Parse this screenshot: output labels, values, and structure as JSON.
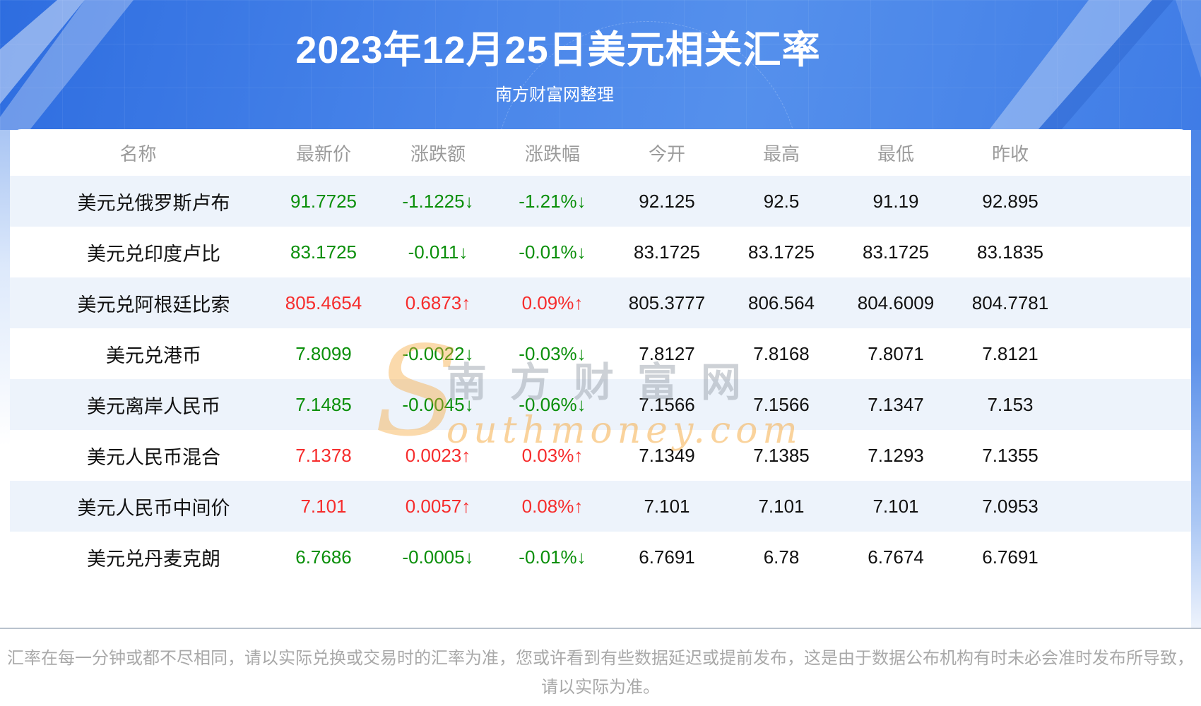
{
  "header": {
    "title": "2023年12月25日美元相关汇率",
    "subtitle": "南方财富网整理"
  },
  "table": {
    "columns": [
      "名称",
      "最新价",
      "涨跌额",
      "涨跌幅",
      "今开",
      "最高",
      "最低",
      "昨收"
    ],
    "rows": [
      {
        "name": "美元兑俄罗斯卢布",
        "latest": "91.7725",
        "change": "-1.1225↓",
        "change_pct": "-1.21%↓",
        "direction": "down",
        "open": "92.125",
        "high": "92.5",
        "low": "91.19",
        "prev_close": "92.895"
      },
      {
        "name": "美元兑印度卢比",
        "latest": "83.1725",
        "change": "-0.011↓",
        "change_pct": "-0.01%↓",
        "direction": "down",
        "open": "83.1725",
        "high": "83.1725",
        "low": "83.1725",
        "prev_close": "83.1835"
      },
      {
        "name": "美元兑阿根廷比索",
        "latest": "805.4654",
        "change": "0.6873↑",
        "change_pct": "0.09%↑",
        "direction": "up",
        "open": "805.3777",
        "high": "806.564",
        "low": "804.6009",
        "prev_close": "804.7781"
      },
      {
        "name": "美元兑港币",
        "latest": "7.8099",
        "change": "-0.0022↓",
        "change_pct": "-0.03%↓",
        "direction": "down",
        "open": "7.8127",
        "high": "7.8168",
        "low": "7.8071",
        "prev_close": "7.8121"
      },
      {
        "name": "美元离岸人民币",
        "latest": "7.1485",
        "change": "-0.0045↓",
        "change_pct": "-0.06%↓",
        "direction": "down",
        "open": "7.1566",
        "high": "7.1566",
        "low": "7.1347",
        "prev_close": "7.153"
      },
      {
        "name": "美元人民币混合",
        "latest": "7.1378",
        "change": "0.0023↑",
        "change_pct": "0.03%↑",
        "direction": "up",
        "open": "7.1349",
        "high": "7.1385",
        "low": "7.1293",
        "prev_close": "7.1355"
      },
      {
        "name": "美元人民币中间价",
        "latest": "7.101",
        "change": "0.0057↑",
        "change_pct": "0.08%↑",
        "direction": "up",
        "open": "7.101",
        "high": "7.101",
        "low": "7.101",
        "prev_close": "7.0953"
      },
      {
        "name": "美元兑丹麦克朗",
        "latest": "6.7686",
        "change": "-0.0005↓",
        "change_pct": "-0.01%↓",
        "direction": "down",
        "open": "6.7691",
        "high": "6.78",
        "low": "6.7674",
        "prev_close": "6.7691"
      }
    ]
  },
  "watermark": {
    "initial": "S",
    "cn": "南方财富网",
    "domain": "outhmoney.com"
  },
  "footer": {
    "line1": "汇率在每一分钟或都不尽相同，请以实际兑换或交易时的汇率为准，您或许看到有些数据延迟或提前发布，这是由于数据公布机构有时未必会准时发布所导致，",
    "line2": "请以实际为准。"
  },
  "colors": {
    "header_blue": "#4a86ea",
    "up_red": "#f62c2c",
    "down_green": "#0a8f0a",
    "row_alt_bg": "#edf3fb",
    "watermark_orange": "#f7a83c",
    "header_text_gray": "#9b9b9b"
  }
}
